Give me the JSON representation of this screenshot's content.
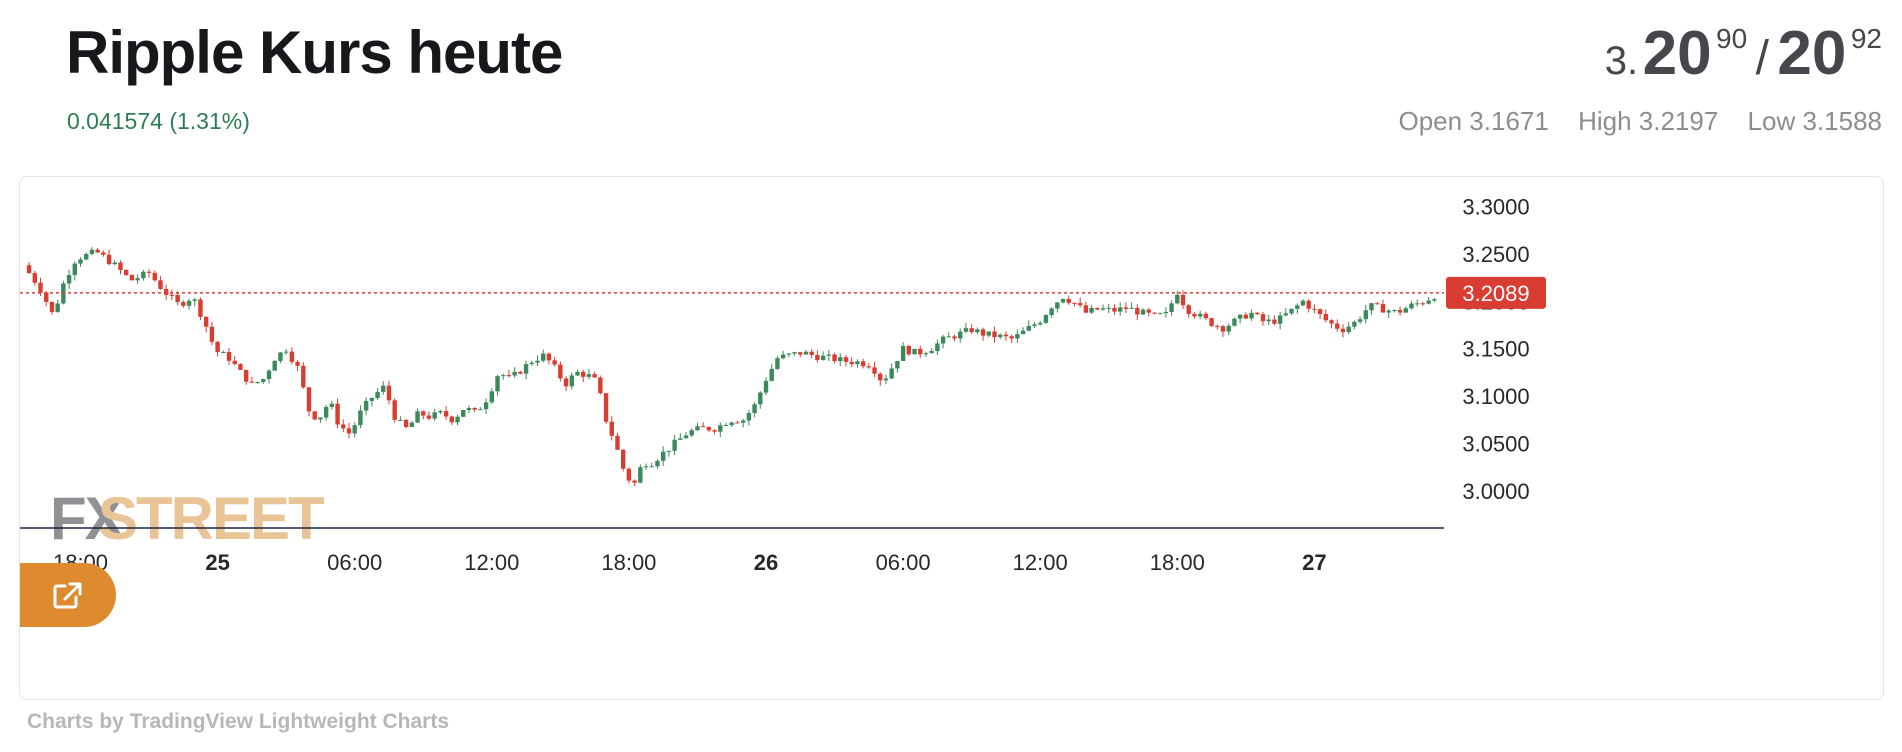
{
  "header": {
    "title": "Ripple Kurs heute",
    "change": "0.041574 (1.31%)",
    "quote": {
      "prefix": "3.",
      "bid_big": "20",
      "bid_small": "90",
      "separator": "/",
      "ask_big": "20",
      "ask_small": "92"
    },
    "open": "Open 3.1671",
    "high": "High 3.2197",
    "low": "Low 3.1588"
  },
  "brand": {
    "logo_text_left": "FX",
    "logo_text_right": "STREET",
    "logo_color_left": "#8f9195",
    "logo_color_right": "#e9c497"
  },
  "footer": {
    "credit": "Charts by TradingView Lightweight Charts"
  },
  "colors": {
    "up": "#3a8a5c",
    "down": "#d93d32",
    "price_line": "#d93d32",
    "accent": "#de8b2f"
  },
  "icons": {
    "open_external": "external-link-icon"
  },
  "chart_data": {
    "type": "candlestick",
    "title": "",
    "xlabel": "",
    "ylabel": "",
    "ylim": [
      2.962,
      3.331
    ],
    "y_ticks": [
      "3.3000",
      "3.2500",
      "3.2000",
      "3.1500",
      "3.1000",
      "3.0500",
      "3.0000"
    ],
    "y_tick_values": [
      3.3,
      3.25,
      3.2,
      3.15,
      3.1,
      3.05,
      3.0
    ],
    "x_ticks": [
      {
        "label": "18:00",
        "hour": 18,
        "bold": false
      },
      {
        "label": "25",
        "hour": 24,
        "bold": true
      },
      {
        "label": "06:00",
        "hour": 30,
        "bold": false
      },
      {
        "label": "12:00",
        "hour": 36,
        "bold": false
      },
      {
        "label": "18:00",
        "hour": 42,
        "bold": false
      },
      {
        "label": "26",
        "hour": 48,
        "bold": true
      },
      {
        "label": "06:00",
        "hour": 54,
        "bold": false
      },
      {
        "label": "12:00",
        "hour": 60,
        "bold": false
      },
      {
        "label": "18:00",
        "hour": 66,
        "bold": false
      },
      {
        "label": "27",
        "hour": 72,
        "bold": true
      }
    ],
    "last_price": "3.2089",
    "last_value": 3.2089,
    "grid": false,
    "series_close_path": [
      [
        15.5,
        3.238
      ],
      [
        16.2,
        3.215
      ],
      [
        16.8,
        3.185
      ],
      [
        17.3,
        3.222
      ],
      [
        17.8,
        3.245
      ],
      [
        18.7,
        3.252
      ],
      [
        19.4,
        3.24
      ],
      [
        20.2,
        3.222
      ],
      [
        21.0,
        3.23
      ],
      [
        21.6,
        3.212
      ],
      [
        22.3,
        3.196
      ],
      [
        22.9,
        3.205
      ],
      [
        23.4,
        3.18
      ],
      [
        23.9,
        3.148
      ],
      [
        24.5,
        3.14
      ],
      [
        25.0,
        3.125
      ],
      [
        25.5,
        3.112
      ],
      [
        26.0,
        3.118
      ],
      [
        26.5,
        3.14
      ],
      [
        27.0,
        3.15
      ],
      [
        27.5,
        3.13
      ],
      [
        28.0,
        3.085
      ],
      [
        28.4,
        3.075
      ],
      [
        28.9,
        3.095
      ],
      [
        29.3,
        3.07
      ],
      [
        29.8,
        3.06
      ],
      [
        30.3,
        3.085
      ],
      [
        30.8,
        3.1
      ],
      [
        31.3,
        3.11
      ],
      [
        31.8,
        3.075
      ],
      [
        32.3,
        3.065
      ],
      [
        32.8,
        3.082
      ],
      [
        33.3,
        3.078
      ],
      [
        33.8,
        3.082
      ],
      [
        34.3,
        3.075
      ],
      [
        34.8,
        3.088
      ],
      [
        35.3,
        3.082
      ],
      [
        35.8,
        3.098
      ],
      [
        36.3,
        3.125
      ],
      [
        36.8,
        3.118
      ],
      [
        37.3,
        3.128
      ],
      [
        37.8,
        3.138
      ],
      [
        38.3,
        3.143
      ],
      [
        38.8,
        3.128
      ],
      [
        39.2,
        3.112
      ],
      [
        39.7,
        3.125
      ],
      [
        40.2,
        3.122
      ],
      [
        40.6,
        3.115
      ],
      [
        41.0,
        3.075
      ],
      [
        41.4,
        3.05
      ],
      [
        41.8,
        3.02
      ],
      [
        42.2,
        3.005
      ],
      [
        42.6,
        3.03
      ],
      [
        43.0,
        3.03
      ],
      [
        43.5,
        3.04
      ],
      [
        44.0,
        3.05
      ],
      [
        44.6,
        3.062
      ],
      [
        45.2,
        3.066
      ],
      [
        45.8,
        3.066
      ],
      [
        46.4,
        3.075
      ],
      [
        47.0,
        3.075
      ],
      [
        47.5,
        3.09
      ],
      [
        48.0,
        3.118
      ],
      [
        48.5,
        3.14
      ],
      [
        49.0,
        3.143
      ],
      [
        49.6,
        3.146
      ],
      [
        50.2,
        3.142
      ],
      [
        50.8,
        3.14
      ],
      [
        51.4,
        3.137
      ],
      [
        52.0,
        3.136
      ],
      [
        52.6,
        3.133
      ],
      [
        53.1,
        3.115
      ],
      [
        53.5,
        3.13
      ],
      [
        54.0,
        3.15
      ],
      [
        54.6,
        3.145
      ],
      [
        55.2,
        3.15
      ],
      [
        55.8,
        3.16
      ],
      [
        56.4,
        3.165
      ],
      [
        57.0,
        3.17
      ],
      [
        57.6,
        3.165
      ],
      [
        58.2,
        3.163
      ],
      [
        58.8,
        3.16
      ],
      [
        59.4,
        3.17
      ],
      [
        60.0,
        3.18
      ],
      [
        60.5,
        3.195
      ],
      [
        61.0,
        3.205
      ],
      [
        61.5,
        3.198
      ],
      [
        62.0,
        3.188
      ],
      [
        62.6,
        3.192
      ],
      [
        63.2,
        3.19
      ],
      [
        63.8,
        3.193
      ],
      [
        64.4,
        3.188
      ],
      [
        65.0,
        3.184
      ],
      [
        65.5,
        3.186
      ],
      [
        66.0,
        3.21
      ],
      [
        66.4,
        3.192
      ],
      [
        66.9,
        3.185
      ],
      [
        67.4,
        3.178
      ],
      [
        68.0,
        3.172
      ],
      [
        68.6,
        3.18
      ],
      [
        69.2,
        3.188
      ],
      [
        69.8,
        3.178
      ],
      [
        70.4,
        3.18
      ],
      [
        71.0,
        3.19
      ],
      [
        71.5,
        3.2
      ],
      [
        72.0,
        3.19
      ],
      [
        72.6,
        3.178
      ],
      [
        73.2,
        3.17
      ],
      [
        73.8,
        3.178
      ],
      [
        74.4,
        3.195
      ],
      [
        75.0,
        3.192
      ],
      [
        75.6,
        3.188
      ],
      [
        76.2,
        3.195
      ],
      [
        76.8,
        3.2
      ],
      [
        77.4,
        3.208
      ],
      [
        77.8,
        3.21
      ],
      [
        78.3,
        3.208
      ]
    ]
  }
}
